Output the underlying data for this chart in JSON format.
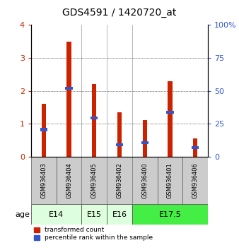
{
  "title": "GDS4591 / 1420720_at",
  "samples": [
    "GSM936403",
    "GSM936404",
    "GSM936405",
    "GSM936402",
    "GSM936400",
    "GSM936401",
    "GSM936406"
  ],
  "transformed_count": [
    1.6,
    3.5,
    2.2,
    1.35,
    1.1,
    2.3,
    0.55
  ],
  "percentile_rank": [
    0.82,
    2.07,
    1.17,
    0.35,
    0.42,
    1.35,
    0.27
  ],
  "age_groups": [
    {
      "label": "E14",
      "span": [
        0,
        1
      ],
      "color": "#ddffdd"
    },
    {
      "label": "E15",
      "span": [
        2,
        2
      ],
      "color": "#ddffdd"
    },
    {
      "label": "E16",
      "span": [
        3,
        3
      ],
      "color": "#ddffdd"
    },
    {
      "label": "E17.5",
      "span": [
        4,
        6
      ],
      "color": "#44ee44"
    }
  ],
  "ylim_left": [
    0,
    4
  ],
  "yticks_left": [
    0,
    1,
    2,
    3,
    4
  ],
  "yticks_right": [
    0,
    25,
    50,
    75,
    100
  ],
  "bar_color": "#cc2200",
  "percentile_color": "#3355cc",
  "bar_width": 0.18,
  "background_color": "#ffffff",
  "left_tick_color": "#cc2200",
  "right_tick_color": "#3355cc",
  "sample_box_color": "#cccccc",
  "legend_labels": [
    "transformed count",
    "percentile rank within the sample"
  ]
}
